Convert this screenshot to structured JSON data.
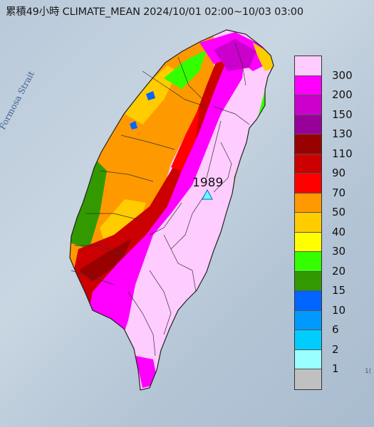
{
  "title": "累積49小時 CLIMATE_MEAN 2024/10/01 02:00~10/03 03:00",
  "water_label": "Formosa Strait",
  "legend": {
    "colors": [
      "#ffccff",
      "#ff00ff",
      "#cc00cc",
      "#990099",
      "#990000",
      "#cc0000",
      "#ff0000",
      "#ff9900",
      "#ffcc00",
      "#ffff00",
      "#33ff00",
      "#339900",
      "#0066ff",
      "#0099ff",
      "#00ccff",
      "#99ffff",
      "#c0c0c0"
    ],
    "labels": [
      "300",
      "200",
      "150",
      "130",
      "110",
      "90",
      "70",
      "50",
      "40",
      "30",
      "20",
      "15",
      "10",
      "6",
      "2",
      "1"
    ]
  },
  "peak_station": {
    "label": "1989",
    "marker": "triangle-marker"
  },
  "corner_text": "1("
}
